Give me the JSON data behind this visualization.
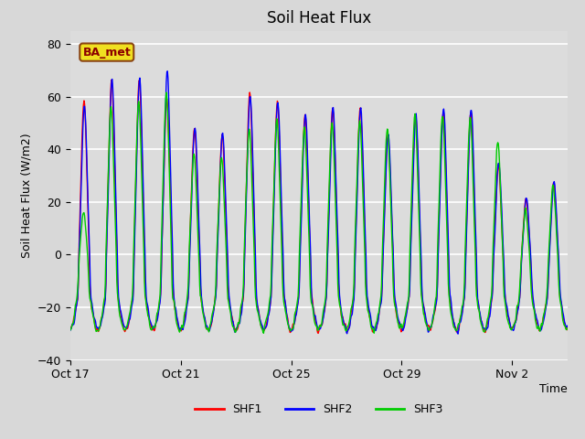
{
  "title": "Soil Heat Flux",
  "ylabel": "Soil Heat Flux (W/m2)",
  "xlabel": "Time",
  "ylim": [
    -40,
    85
  ],
  "yticks": [
    -40,
    -20,
    0,
    20,
    40,
    60,
    80
  ],
  "background_color": "#d8d8d8",
  "plot_bg_color": "#dcdcdc",
  "upper_bg_color": "#c8c8c8",
  "grid_color": "#ffffff",
  "line_colors": {
    "SHF1": "red",
    "SHF2": "blue",
    "SHF3": "#00cc00"
  },
  "line_width": 1.0,
  "annotation_text": "BA_met",
  "annotation_box_facecolor": "#f0e020",
  "annotation_box_edgecolor": "#8b4513",
  "annotation_text_color": "#8b0000",
  "x_tick_labels": [
    "Oct 17",
    "Oct 21",
    "Oct 25",
    "Oct 29",
    "Nov 2"
  ],
  "title_fontsize": 12,
  "label_fontsize": 9,
  "tick_fontsize": 9
}
